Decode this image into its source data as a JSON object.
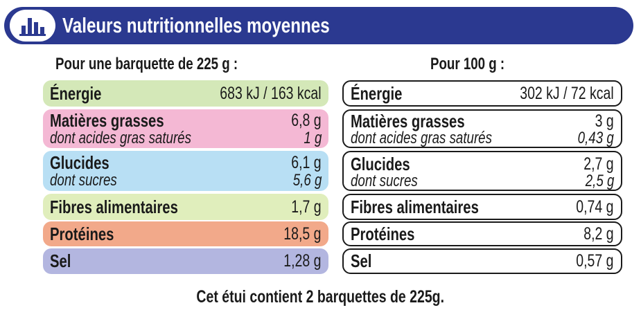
{
  "header": {
    "title": "Valeurs nutritionnelles moyennes",
    "icon": "bar-chart-icon",
    "color": "#2b3990"
  },
  "columns": {
    "left_heading": "Pour une barquette de 225 g :",
    "right_heading": "Pour 100 g :"
  },
  "nutrients": [
    {
      "label": "Énergie",
      "per_portion": "683 kJ / 163 kcal",
      "per_100g": "302 kJ / 72 kcal",
      "color": "#d4e8b8"
    },
    {
      "label": "Matières grasses",
      "per_portion": "6,8 g",
      "per_100g": "3 g",
      "color": "#f4b8d4",
      "sub_label": "dont acides gras saturés",
      "sub_per_portion": "1 g",
      "sub_per_100g": "0,43 g"
    },
    {
      "label": "Glucides",
      "per_portion": "6,1 g",
      "per_100g": "2,7 g",
      "color": "#b8dff4",
      "sub_label": "dont sucres",
      "sub_per_portion": "5,6 g",
      "sub_per_100g": "2,5 g"
    },
    {
      "label": "Fibres alimentaires",
      "per_portion": "1,7 g",
      "per_100g": "0,74 g",
      "color": "#e0eebc"
    },
    {
      "label": "Protéines",
      "per_portion": "18,5 g",
      "per_100g": "8,2 g",
      "color": "#f2a98a"
    },
    {
      "label": "Sel",
      "per_portion": "1,28 g",
      "per_100g": "0,57 g",
      "color": "#b3b6e0"
    }
  ],
  "footer": "Cet étui contient 2 barquettes de 225g."
}
